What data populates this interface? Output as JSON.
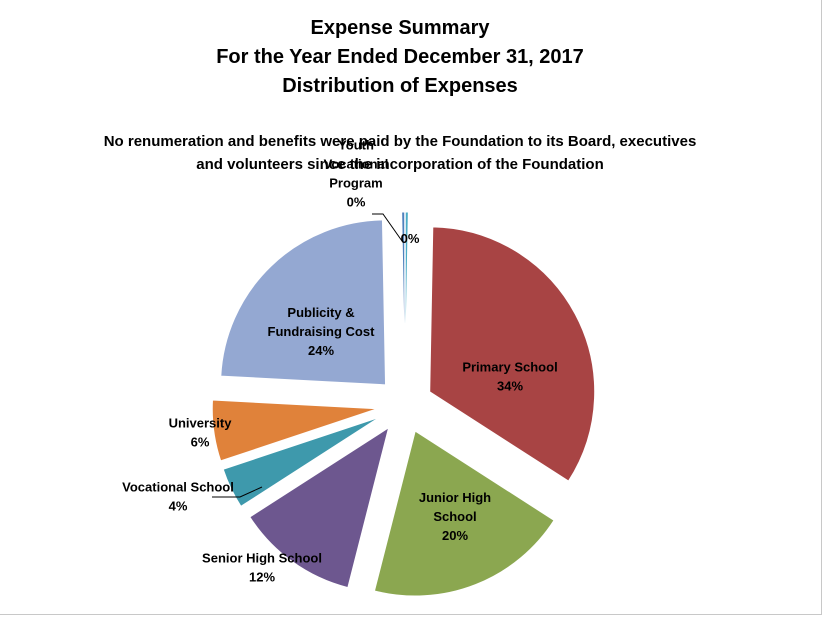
{
  "chart_data": {
    "type": "pie",
    "title": [
      "Expense Summary",
      "For the Year Ended December 31, 2017",
      "Distribution of Expenses"
    ],
    "subtitle": [
      "No renumeration and benefits were paid by the Foundation to its Board, executives",
      "and volunteers since the incorporation of the Foundation"
    ],
    "slices": [
      {
        "name": "",
        "percent": "0%",
        "value": 0.3,
        "color": "#4bacc6"
      },
      {
        "name": "Primary School",
        "percent": "34%",
        "value": 34,
        "color": "#a84444"
      },
      {
        "name": "Junior High School",
        "percent": "20%",
        "value": 20,
        "color": "#8ba750"
      },
      {
        "name": "Senior High School",
        "percent": "12%",
        "value": 12,
        "color": "#6d578f"
      },
      {
        "name": "Vocational School",
        "percent": "4%",
        "value": 4,
        "color": "#3e99ac"
      },
      {
        "name": "University",
        "percent": "6%",
        "value": 6,
        "color": "#e0823a"
      },
      {
        "name": "Publicity & Fundraising Cost",
        "percent": "24%",
        "value": 24,
        "color": "#94a8d2"
      },
      {
        "name": "Youth Vocational Program",
        "percent": "0%",
        "value": 0.3,
        "color": "#4f81bd"
      }
    ],
    "legend": "none",
    "exploded": true
  }
}
